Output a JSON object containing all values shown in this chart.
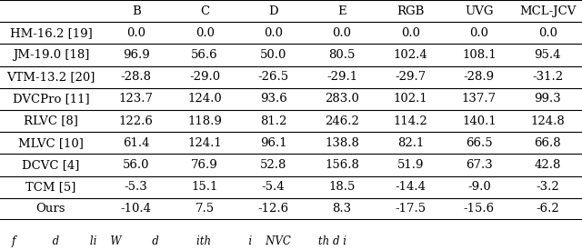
{
  "columns": [
    "B",
    "C",
    "D",
    "E",
    "RGB",
    "UVG",
    "MCL-JCV"
  ],
  "rows": [
    [
      "HM-16.2 [19]",
      "0.0",
      "0.0",
      "0.0",
      "0.0",
      "0.0",
      "0.0",
      "0.0"
    ],
    [
      "JM-19.0 [18]",
      "96.9",
      "56.6",
      "50.0",
      "80.5",
      "102.4",
      "108.1",
      "95.4"
    ],
    [
      "VTM-13.2 [20]",
      "-28.8",
      "-29.0",
      "-26.5",
      "-29.1",
      "-29.7",
      "-28.9",
      "-31.2"
    ],
    [
      "DVCPro [11]",
      "123.7",
      "124.0",
      "93.6",
      "283.0",
      "102.1",
      "137.7",
      "99.3"
    ],
    [
      "RLVC [8]",
      "122.6",
      "118.9",
      "81.2",
      "246.2",
      "114.2",
      "140.1",
      "124.8"
    ],
    [
      "MLVC [10]",
      "61.4",
      "124.1",
      "96.1",
      "138.8",
      "82.1",
      "66.5",
      "66.8"
    ],
    [
      "DCVC [4]",
      "56.0",
      "76.9",
      "52.8",
      "156.8",
      "51.9",
      "67.3",
      "42.8"
    ],
    [
      "TCM [5]",
      "-5.3",
      "15.1",
      "-5.4",
      "18.5",
      "-14.4",
      "-9.0",
      "-3.2"
    ],
    [
      "Ours",
      "-10.4",
      "7.5",
      "-12.6",
      "8.3",
      "-17.5",
      "-15.6",
      "-6.2"
    ]
  ],
  "caption": "f           d         li    W         d           ith           i    NVC        th d i",
  "bg_color": "#ffffff",
  "text_color": "#000000",
  "font_size": 9.5,
  "caption_fontsize": 8.5
}
